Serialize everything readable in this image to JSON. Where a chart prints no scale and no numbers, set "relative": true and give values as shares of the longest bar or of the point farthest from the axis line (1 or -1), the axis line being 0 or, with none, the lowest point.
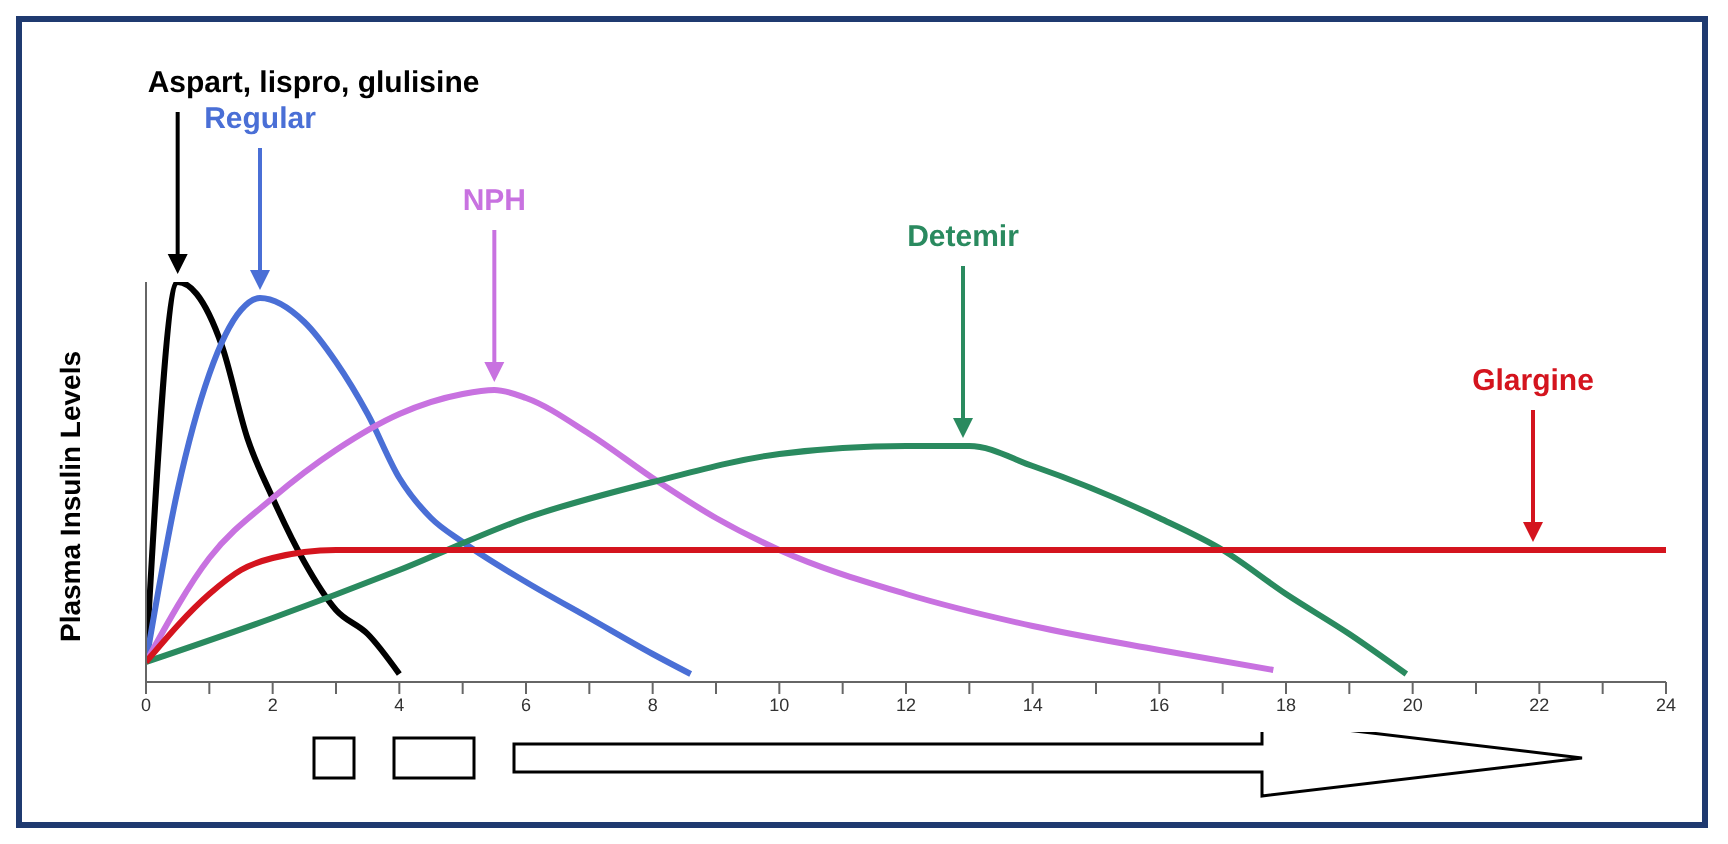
{
  "chart_data": {
    "type": "line",
    "ylabel": "Plasma Insulin Levels",
    "relative": true,
    "xlim": [
      0,
      24
    ],
    "xticks": [
      0,
      {
        "value": 1,
        "label": null
      },
      2,
      {
        "value": 3,
        "label": null
      },
      4,
      {
        "value": 5,
        "label": null
      },
      6,
      {
        "value": 7,
        "label": null
      },
      8,
      {
        "value": 9,
        "label": null
      },
      10,
      {
        "value": 11,
        "label": null
      },
      12,
      {
        "value": 13,
        "label": null
      },
      14,
      {
        "value": 15,
        "label": null
      },
      16,
      {
        "value": 17,
        "label": null
      },
      18,
      {
        "value": 19,
        "label": null
      },
      20,
      {
        "value": 21,
        "label": null
      },
      22,
      {
        "value": 23,
        "label": null
      },
      24
    ],
    "series": [
      {
        "color": "#000000",
        "x": [
          0,
          0.5,
          0.8,
          1.2,
          1.6,
          2,
          2.5,
          3,
          3.5,
          4
        ],
        "values": [
          0.05,
          1.0,
          0.97,
          0.84,
          0.61,
          0.46,
          0.3,
          0.18,
          0.12,
          0.02
        ]
      },
      {
        "color": "#4a6fd6",
        "x": [
          0,
          0.5,
          1,
          1.5,
          1.8,
          2.5,
          3,
          3.5,
          4,
          4.5,
          5,
          6,
          7,
          8,
          8.6
        ],
        "values": [
          0.05,
          0.48,
          0.77,
          0.93,
          0.96,
          0.9,
          0.8,
          0.67,
          0.51,
          0.41,
          0.35,
          0.25,
          0.16,
          0.07,
          0.02
        ]
      },
      {
        "color": "#c872e0",
        "x": [
          0,
          1,
          2,
          3,
          4,
          5,
          5.5,
          6,
          7,
          8,
          9,
          10,
          12,
          14,
          16,
          17.8
        ],
        "values": [
          0.05,
          0.31,
          0.46,
          0.58,
          0.67,
          0.72,
          0.73,
          0.71,
          0.62,
          0.51,
          0.41,
          0.33,
          0.22,
          0.14,
          0.08,
          0.03
        ]
      },
      {
        "color": "#2a8a5f",
        "x": [
          0,
          2,
          4,
          6,
          8,
          10,
          12,
          13,
          14,
          16,
          17,
          18,
          19,
          19.9
        ],
        "values": [
          0.05,
          0.16,
          0.28,
          0.41,
          0.5,
          0.57,
          0.59,
          0.59,
          0.54,
          0.41,
          0.33,
          0.22,
          0.12,
          0.02
        ]
      },
      {
        "color": "#d4141e",
        "x": [
          0,
          1,
          1.5,
          2,
          3,
          24
        ],
        "values": [
          0.05,
          0.22,
          0.28,
          0.31,
          0.33,
          0.33
        ]
      }
    ],
    "annotations": [
      "Aspart, lispro, glulisine",
      "Regular",
      "NPH",
      "Detemir",
      "Glargine"
    ],
    "grid": false,
    "legend": false,
    "marker": "none",
    "line_style": "solid"
  }
}
